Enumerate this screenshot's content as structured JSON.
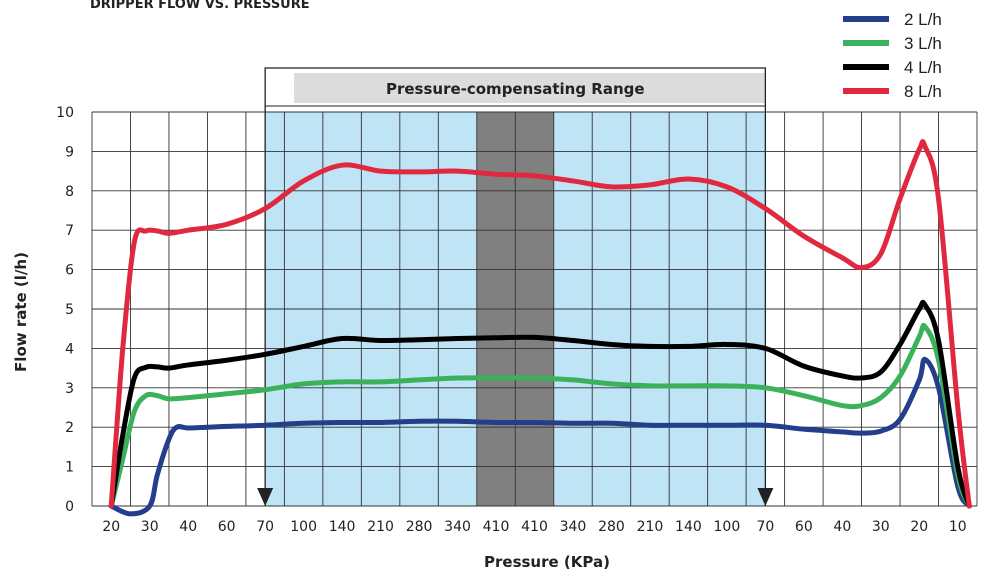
{
  "header_text": "DRIPPER FLOW VS. PRESSURE",
  "chart_data": {
    "type": "line",
    "xlabel": "Pressure (KPa)",
    "ylabel": "Flow rate (l/h)",
    "ylim": [
      0,
      10
    ],
    "y_ticks": [
      "0",
      "1",
      "2",
      "3",
      "4",
      "5",
      "6",
      "7",
      "8",
      "9",
      "10"
    ],
    "x_tick_labels": [
      "20",
      "30",
      "40",
      "60",
      "70",
      "100",
      "140",
      "210",
      "280",
      "340",
      "410",
      "410",
      "340",
      "280",
      "210",
      "140",
      "100",
      "70",
      "60",
      "40",
      "30",
      "20",
      "10"
    ],
    "grid": true,
    "legend_position": "top-right",
    "range_label": "Pressure-compensating Range",
    "colors": {
      "range_fill": "#bfe4f5",
      "range_header": "#dcdcdc",
      "center_band": "#808080",
      "grid": "#333333"
    },
    "series": [
      {
        "name": "2 L/h",
        "color": "#233e8b",
        "points": [
          [
            0,
            0
          ],
          [
            0.5,
            -0.2
          ],
          [
            1,
            0
          ],
          [
            1.2,
            0.8
          ],
          [
            1.5,
            1.7
          ],
          [
            1.7,
            2.0
          ],
          [
            2,
            1.98
          ],
          [
            2.5,
            2.0
          ],
          [
            3,
            2.02
          ],
          [
            4,
            2.05
          ],
          [
            5,
            2.1
          ],
          [
            6,
            2.12
          ],
          [
            7,
            2.12
          ],
          [
            8,
            2.15
          ],
          [
            9,
            2.15
          ],
          [
            10,
            2.12
          ],
          [
            11,
            2.12
          ],
          [
            12,
            2.1
          ],
          [
            13,
            2.1
          ],
          [
            14,
            2.05
          ],
          [
            15,
            2.05
          ],
          [
            16,
            2.05
          ],
          [
            17,
            2.05
          ],
          [
            18,
            1.95
          ],
          [
            19,
            1.88
          ],
          [
            19.5,
            1.85
          ],
          [
            20,
            1.9
          ],
          [
            20.5,
            2.2
          ],
          [
            21,
            3.2
          ],
          [
            21.15,
            3.72
          ],
          [
            21.5,
            3.0
          ],
          [
            22,
            0.5
          ],
          [
            22.3,
            0
          ]
        ]
      },
      {
        "name": "3 L/h",
        "color": "#3cb15c",
        "points": [
          [
            0,
            0
          ],
          [
            0.3,
            1.2
          ],
          [
            0.6,
            2.4
          ],
          [
            0.9,
            2.8
          ],
          [
            1.2,
            2.8
          ],
          [
            1.5,
            2.72
          ],
          [
            2,
            2.75
          ],
          [
            3,
            2.85
          ],
          [
            4,
            2.95
          ],
          [
            5,
            3.1
          ],
          [
            6,
            3.15
          ],
          [
            7,
            3.15
          ],
          [
            8,
            3.2
          ],
          [
            9,
            3.25
          ],
          [
            10,
            3.25
          ],
          [
            11,
            3.25
          ],
          [
            12,
            3.2
          ],
          [
            13,
            3.1
          ],
          [
            14,
            3.05
          ],
          [
            15,
            3.05
          ],
          [
            16,
            3.05
          ],
          [
            17,
            3.0
          ],
          [
            18,
            2.8
          ],
          [
            19,
            2.55
          ],
          [
            19.5,
            2.55
          ],
          [
            20,
            2.75
          ],
          [
            20.5,
            3.3
          ],
          [
            21,
            4.3
          ],
          [
            21.15,
            4.55
          ],
          [
            21.5,
            3.7
          ],
          [
            22,
            0.8
          ],
          [
            22.3,
            0
          ]
        ]
      },
      {
        "name": "4 L/h",
        "color": "#000000",
        "points": [
          [
            0,
            0
          ],
          [
            0.3,
            1.8
          ],
          [
            0.6,
            3.25
          ],
          [
            0.9,
            3.52
          ],
          [
            1.2,
            3.53
          ],
          [
            1.5,
            3.5
          ],
          [
            2,
            3.58
          ],
          [
            3,
            3.7
          ],
          [
            4,
            3.85
          ],
          [
            5,
            4.05
          ],
          [
            6,
            4.25
          ],
          [
            7,
            4.2
          ],
          [
            8,
            4.22
          ],
          [
            9,
            4.25
          ],
          [
            10,
            4.27
          ],
          [
            11,
            4.28
          ],
          [
            12,
            4.2
          ],
          [
            13,
            4.1
          ],
          [
            14,
            4.05
          ],
          [
            15,
            4.05
          ],
          [
            16,
            4.1
          ],
          [
            17,
            4.0
          ],
          [
            18,
            3.55
          ],
          [
            19,
            3.3
          ],
          [
            19.5,
            3.25
          ],
          [
            20,
            3.4
          ],
          [
            20.5,
            4.1
          ],
          [
            21,
            5.0
          ],
          [
            21.15,
            5.1
          ],
          [
            21.5,
            4.2
          ],
          [
            22,
            1.0
          ],
          [
            22.3,
            0
          ]
        ]
      },
      {
        "name": "8 L/h",
        "color": "#e0293f",
        "points": [
          [
            0,
            0
          ],
          [
            0.3,
            4.0
          ],
          [
            0.6,
            6.7
          ],
          [
            0.9,
            6.98
          ],
          [
            1.2,
            6.98
          ],
          [
            1.5,
            6.92
          ],
          [
            2,
            7.0
          ],
          [
            3,
            7.15
          ],
          [
            4,
            7.55
          ],
          [
            5,
            8.25
          ],
          [
            6,
            8.65
          ],
          [
            7,
            8.5
          ],
          [
            8,
            8.48
          ],
          [
            9,
            8.5
          ],
          [
            10,
            8.42
          ],
          [
            11,
            8.38
          ],
          [
            12,
            8.25
          ],
          [
            13,
            8.1
          ],
          [
            14,
            8.15
          ],
          [
            15,
            8.3
          ],
          [
            16,
            8.1
          ],
          [
            17,
            7.55
          ],
          [
            18,
            6.85
          ],
          [
            19,
            6.3
          ],
          [
            19.5,
            6.05
          ],
          [
            20,
            6.4
          ],
          [
            20.5,
            7.8
          ],
          [
            21,
            9.05
          ],
          [
            21.15,
            9.12
          ],
          [
            21.5,
            7.8
          ],
          [
            22,
            2.5
          ],
          [
            22.3,
            0
          ]
        ]
      }
    ]
  }
}
